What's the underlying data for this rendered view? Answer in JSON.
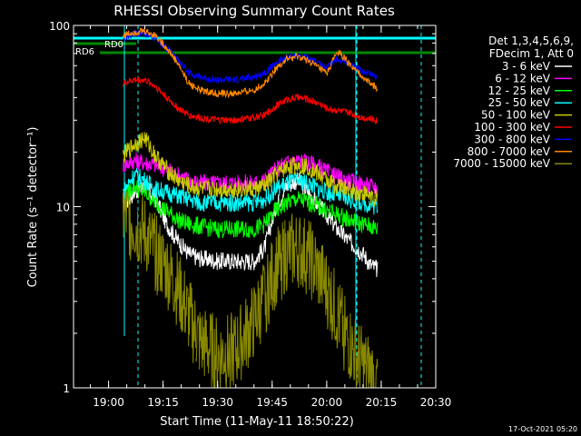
{
  "chart_data": {
    "type": "line",
    "title": "RHESSI Observing Summary Count Rates",
    "xlabel": "Start Time (11-May-11 18:50:22)",
    "ylabel": "Count Rate (s⁻¹ detector⁻¹)",
    "yscale": "log",
    "ylim": [
      1,
      100
    ],
    "xlim": [
      "18:50:22",
      "20:30:00"
    ],
    "x_ticks": [
      "19:00",
      "19:15",
      "19:30",
      "19:45",
      "20:00",
      "20:15",
      "20:30"
    ],
    "y_ticks": [
      "1",
      "10",
      "100"
    ],
    "footer": "17-Oct-2021 05:20",
    "legend_header": [
      "Det 1,3,4,5,6,9,",
      "FDecim 1, Att 0"
    ],
    "legend_position": "right",
    "annotations": [
      "RD0",
      "RD6"
    ],
    "series": [
      {
        "name": "3 - 6 keV",
        "color": "#ffffff",
        "x": [
          "19:04",
          "19:07",
          "19:10",
          "19:13",
          "19:16",
          "19:19",
          "19:22",
          "19:25",
          "19:30",
          "19:35",
          "19:40",
          "19:43",
          "19:46",
          "19:49",
          "19:52",
          "19:55",
          "19:58",
          "20:00",
          "20:03",
          "20:06",
          "20:08",
          "20:10",
          "20:12",
          "20:14"
        ],
        "y": [
          10,
          12,
          13,
          11,
          8,
          6.5,
          5.5,
          5.2,
          5,
          5,
          5,
          6,
          10,
          13,
          14,
          12,
          10,
          9,
          7.5,
          6.5,
          6,
          5.5,
          4.8,
          4.5
        ]
      },
      {
        "name": "6 - 12 keV",
        "color": "#ff00ff",
        "x": [
          "19:04",
          "19:07",
          "19:10",
          "19:13",
          "19:16",
          "19:19",
          "19:22",
          "19:25",
          "19:30",
          "19:35",
          "19:40",
          "19:43",
          "19:46",
          "19:49",
          "19:52",
          "19:55",
          "19:58",
          "20:00",
          "20:03",
          "20:06",
          "20:08",
          "20:10",
          "20:12",
          "20:14"
        ],
        "y": [
          17,
          18,
          17.5,
          17,
          16,
          15,
          14,
          13.5,
          13.5,
          13.5,
          13.5,
          14,
          16,
          17.5,
          18,
          17.5,
          16.5,
          15.5,
          14.5,
          13.8,
          13.5,
          13.2,
          13,
          12.8
        ]
      },
      {
        "name": "12 - 25 keV",
        "color": "#00ff00",
        "x": [
          "19:04",
          "19:07",
          "19:10",
          "19:13",
          "19:16",
          "19:19",
          "19:22",
          "19:25",
          "19:30",
          "19:35",
          "19:40",
          "19:43",
          "19:46",
          "19:49",
          "19:52",
          "19:55",
          "19:58",
          "20:00",
          "20:03",
          "20:06",
          "20:08",
          "20:10",
          "20:12",
          "20:14"
        ],
        "y": [
          11,
          13,
          12,
          10.5,
          9.5,
          8.5,
          8,
          7.8,
          7.5,
          7.5,
          7.5,
          8,
          9.5,
          10.5,
          11,
          10.5,
          10,
          9.5,
          9,
          8.5,
          8.2,
          8,
          7.8,
          7.5
        ]
      },
      {
        "name": "25 - 50 keV",
        "color": "#00ffff",
        "x": [
          "19:04",
          "19:07",
          "19:10",
          "19:13",
          "19:16",
          "19:19",
          "19:22",
          "19:25",
          "19:30",
          "19:35",
          "19:40",
          "19:43",
          "19:46",
          "19:49",
          "19:52",
          "19:55",
          "19:58",
          "20:00",
          "20:03",
          "20:06",
          "20:08",
          "20:10",
          "20:12",
          "20:14"
        ],
        "y": [
          12,
          15,
          14,
          12.5,
          12,
          11.5,
          11,
          10.5,
          10.5,
          10.5,
          10.5,
          11,
          12.5,
          13.5,
          14,
          13.5,
          12.5,
          12,
          11.5,
          11,
          10.8,
          10.5,
          10.2,
          10
        ]
      },
      {
        "name": "50 - 100 keV",
        "color": "#cccc00",
        "x": [
          "19:04",
          "19:07",
          "19:10",
          "19:13",
          "19:16",
          "19:19",
          "19:22",
          "19:25",
          "19:30",
          "19:35",
          "19:40",
          "19:43",
          "19:46",
          "19:49",
          "19:52",
          "19:55",
          "19:58",
          "20:00",
          "20:03",
          "20:06",
          "20:08",
          "20:10",
          "20:12",
          "20:14"
        ],
        "y": [
          19,
          22,
          24,
          19,
          16,
          14,
          13,
          12.5,
          12.5,
          12.5,
          12.5,
          13,
          15,
          16.5,
          17,
          16.5,
          15,
          14,
          13,
          12.5,
          12,
          11.8,
          11.5,
          11
        ]
      },
      {
        "name": "100 - 300 keV",
        "color": "#ff0000",
        "x": [
          "19:04",
          "19:07",
          "19:10",
          "19:13",
          "19:16",
          "19:19",
          "19:22",
          "19:25",
          "19:30",
          "19:35",
          "19:40",
          "19:43",
          "19:46",
          "19:49",
          "19:52",
          "19:55",
          "19:58",
          "20:00",
          "20:03",
          "20:06",
          "20:08",
          "20:10",
          "20:12",
          "20:14"
        ],
        "y": [
          48,
          50,
          50,
          46,
          40,
          35,
          32,
          31,
          30,
          30,
          31,
          32,
          36,
          39,
          40,
          39,
          37,
          35,
          34,
          33,
          32,
          31,
          30.5,
          30
        ]
      },
      {
        "name": "300 - 800 keV",
        "color": "#0000ff",
        "x": [
          "19:04",
          "19:07",
          "19:10",
          "19:13",
          "19:16",
          "19:19",
          "19:22",
          "19:25",
          "19:30",
          "19:35",
          "19:40",
          "19:43",
          "19:46",
          "19:49",
          "19:52",
          "19:55",
          "19:58",
          "20:00",
          "20:03",
          "20:06",
          "20:08",
          "20:10",
          "20:12",
          "20:14"
        ],
        "y": [
          85,
          90,
          90,
          85,
          75,
          65,
          55,
          52,
          50,
          50,
          52,
          55,
          62,
          67,
          68,
          66,
          62,
          58,
          66,
          62,
          58,
          56,
          54,
          52
        ]
      },
      {
        "name": "800 - 7000 keV",
        "color": "#ff8800",
        "x": [
          "19:04",
          "19:07",
          "19:10",
          "19:13",
          "19:16",
          "19:19",
          "19:22",
          "19:25",
          "19:30",
          "19:35",
          "19:40",
          "19:43",
          "19:46",
          "19:49",
          "19:52",
          "19:55",
          "19:58",
          "20:00",
          "20:03",
          "20:06",
          "20:08",
          "20:10",
          "20:12",
          "20:14"
        ],
        "y": [
          88,
          92,
          93,
          88,
          75,
          62,
          48,
          44,
          42,
          42,
          44,
          48,
          58,
          65,
          67,
          64,
          58,
          54,
          72,
          62,
          56,
          52,
          48,
          45
        ]
      },
      {
        "name": "7000 - 15000 keV",
        "color": "#888800",
        "x": [
          "19:04",
          "19:07",
          "19:10",
          "19:13",
          "19:16",
          "19:19",
          "19:22",
          "19:25",
          "19:30",
          "19:35",
          "19:40",
          "19:43",
          "19:46",
          "19:49",
          "19:52",
          "19:55",
          "19:58",
          "20:00",
          "20:03",
          "20:06",
          "20:08",
          "20:10",
          "20:12",
          "20:14"
        ],
        "y": [
          9,
          8,
          7,
          5.5,
          4.5,
          3.5,
          2.5,
          1.8,
          1.5,
          1.6,
          2.3,
          3.2,
          4.5,
          5.5,
          5.8,
          5.2,
          4.2,
          3.5,
          2.5,
          1.8,
          1.5,
          1.3,
          1.2,
          1.1
        ]
      }
    ]
  }
}
